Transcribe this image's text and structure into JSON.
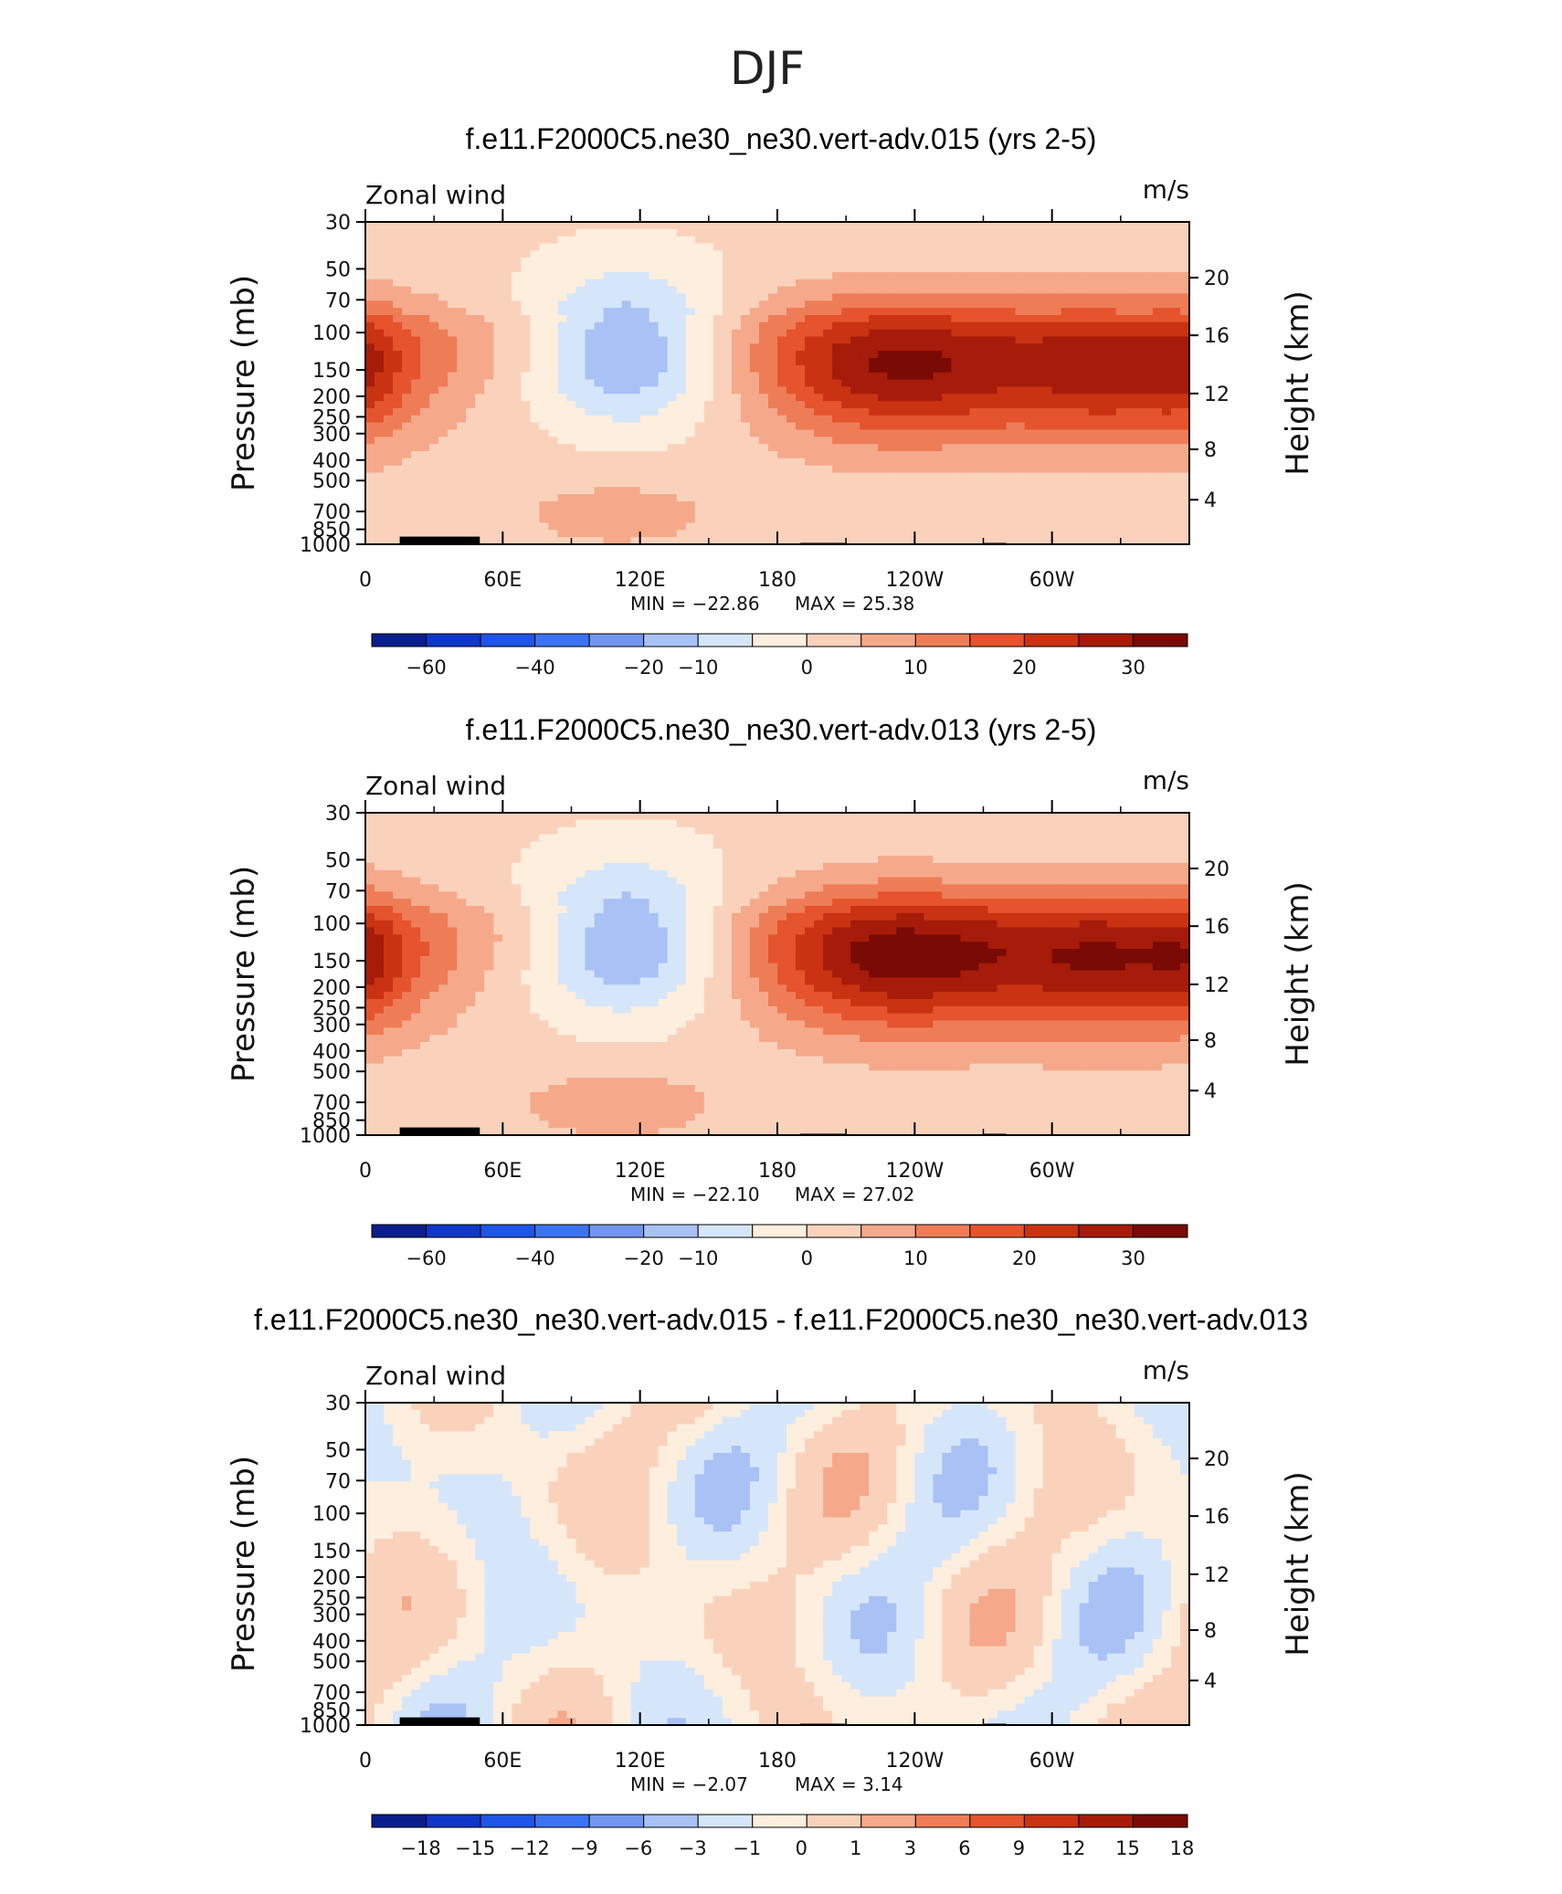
{
  "figure": {
    "suptitle": "DJF",
    "variable_label": "Zonal wind",
    "units_label": "m/s",
    "y_left_label": "Pressure (mb)",
    "y_right_label": "Height (km)"
  },
  "colors": {
    "cmap": [
      "#0a1e8c",
      "#0f37c8",
      "#1e55e6",
      "#3c73f5",
      "#7396f0",
      "#a8c2f5",
      "#d6e6fa",
      "#fdeede",
      "#fad2bc",
      "#f5a98a",
      "#ee7d57",
      "#e5542c",
      "#c93312",
      "#a61b0a",
      "#7a0a05"
    ],
    "land": "#000000",
    "frame": "#000000"
  },
  "chart_data": [
    {
      "type": "contour",
      "title": "f.e11.F2000C5.ne30_ne30.vert-adv.015 (yrs 2-5)",
      "xlabel": "",
      "ylabel": "Pressure (mb)",
      "ylabel_right": "Height (km)",
      "x_ticks": [
        "0",
        "60E",
        "120E",
        "180",
        "120W",
        "60W"
      ],
      "y_ticks": [
        "30",
        "50",
        "70",
        "100",
        "150",
        "200",
        "250",
        "300",
        "400",
        "500",
        "700",
        "850",
        "1000"
      ],
      "y_right_ticks": [
        "20",
        "16",
        "12",
        "8",
        "4"
      ],
      "ylim": [
        1000,
        30
      ],
      "y_scale": "log",
      "min": -22.86,
      "max": 25.38,
      "min_text": "MIN = −22.86",
      "max_text": "MAX =  25.38",
      "colorbar_labels": [
        "−60",
        "−40",
        "−20",
        "−10",
        "0",
        "10",
        "20",
        "30"
      ],
      "features": [
        {
          "lon": 115,
          "p": 120,
          "peak": -20
        },
        {
          "lon": 230,
          "p": 150,
          "peak": 25
        },
        {
          "lon": 330,
          "p": 155,
          "peak": 22
        },
        {
          "lon": 110,
          "p": 720,
          "peak": 6
        }
      ]
    },
    {
      "type": "contour",
      "title": "f.e11.F2000C5.ne30_ne30.vert-adv.013 (yrs 2-5)",
      "xlabel": "",
      "ylabel": "Pressure (mb)",
      "ylabel_right": "Height (km)",
      "x_ticks": [
        "0",
        "60E",
        "120E",
        "180",
        "120W",
        "60W"
      ],
      "y_ticks": [
        "30",
        "50",
        "70",
        "100",
        "150",
        "200",
        "250",
        "300",
        "400",
        "500",
        "700",
        "850",
        "1000"
      ],
      "y_right_ticks": [
        "20",
        "16",
        "12",
        "8",
        "4"
      ],
      "ylim": [
        1000,
        30
      ],
      "y_scale": "log",
      "min": -22.1,
      "max": 27.02,
      "min_text": "MIN = −22.10",
      "max_text": "MAX =  27.02",
      "colorbar_labels": [
        "−60",
        "−40",
        "−20",
        "−10",
        "0",
        "10",
        "20",
        "30"
      ],
      "features": [
        {
          "lon": 115,
          "p": 120,
          "peak": -20
        },
        {
          "lon": 230,
          "p": 150,
          "peak": 27
        },
        {
          "lon": 330,
          "p": 155,
          "peak": 24
        },
        {
          "lon": 110,
          "p": 720,
          "peak": 7
        }
      ]
    },
    {
      "type": "contour",
      "title": "f.e11.F2000C5.ne30_ne30.vert-adv.015 - f.e11.F2000C5.ne30_ne30.vert-adv.013",
      "xlabel": "",
      "ylabel": "Pressure (mb)",
      "ylabel_right": "Height (km)",
      "x_ticks": [
        "0",
        "60E",
        "120E",
        "180",
        "120W",
        "60W"
      ],
      "y_ticks": [
        "30",
        "50",
        "70",
        "100",
        "150",
        "200",
        "250",
        "300",
        "400",
        "500",
        "700",
        "850",
        "1000"
      ],
      "y_right_ticks": [
        "20",
        "16",
        "12",
        "8",
        "4"
      ],
      "ylim": [
        1000,
        30
      ],
      "y_scale": "log",
      "min": -2.07,
      "max": 3.14,
      "min_text": "MIN =   −2.07",
      "max_text": "MAX =    3.14",
      "colorbar_labels": [
        "−18",
        "−15",
        "−12",
        "−9",
        "−6",
        "−3",
        "−1",
        "0",
        "1",
        "3",
        "6",
        "9",
        "12",
        "15",
        "18"
      ]
    }
  ]
}
